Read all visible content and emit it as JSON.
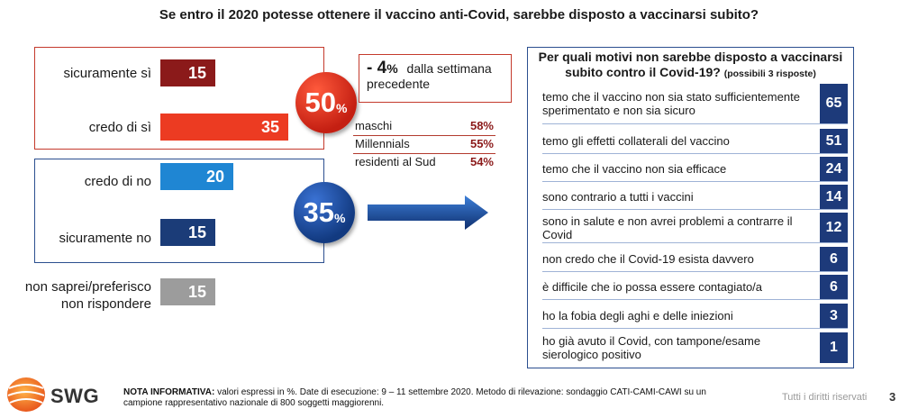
{
  "title": "Se entro il 2020 potesse ottenere il vaccino anti-Covid, sarebbe disposto a vaccinarsi subito?",
  "chart_data": [
    {
      "type": "bar",
      "orientation": "horizontal",
      "categories": [
        "sicuramente sì",
        "credo di sì",
        "credo di no",
        "sicuramente no",
        "non saprei/preferisco non rispondere"
      ],
      "values": [
        15,
        35,
        20,
        15,
        15
      ],
      "colors": [
        "#8b1a1a",
        "#ec3b22",
        "#1f86d3",
        "#1b3c78",
        "#9c9c9c"
      ],
      "xlim": [
        0,
        35
      ],
      "unit": "%"
    },
    {
      "type": "bar",
      "orientation": "horizontal",
      "title": "Per quali motivi non sarebbe disposto a vaccinarsi subito contro il Covid-19?",
      "subtitle": "(possibili 3 risposte)",
      "categories": [
        "temo che il vaccino non sia stato sufficientemente sperimentato e non sia sicuro",
        "temo gli effetti collaterali del vaccino",
        "temo che il vaccino non sia efficace",
        "sono contrario a tutti i vaccini",
        "sono in salute e non avrei problemi a contrarre il Covid",
        "non credo che il Covid-19 esista davvero",
        "è difficile che io possa essere contagiato/a",
        "ho la fobia degli aghi e delle iniezioni",
        "ho già avuto il Covid, con tampone/esame sierologico positivo"
      ],
      "values": [
        65,
        51,
        24,
        14,
        12,
        6,
        6,
        3,
        1
      ]
    }
  ],
  "labels": {
    "cat1": "sicuramente sì",
    "cat2": "credo di sì",
    "cat3": "credo di no",
    "cat4": "sicuramente no",
    "cat5_line1": "non saprei/preferisco",
    "cat5_line2": "non rispondere"
  },
  "yes_total": {
    "value": "50",
    "unit": "%"
  },
  "no_total": {
    "value": "35",
    "unit": "%"
  },
  "callout": {
    "delta": "- 4",
    "delta_unit": "%",
    "text1": "dalla settimana",
    "text2": "precedente"
  },
  "stats": [
    {
      "label": "maschi",
      "value": "58%"
    },
    {
      "label": "Millennials",
      "value": "55%"
    },
    {
      "label": "residenti al Sud",
      "value": "54%"
    }
  ],
  "reasons_panel": {
    "title_line1": "Per quali motivi non sarebbe disposto a vaccinarsi",
    "title_line2": "subito contro il Covid-19?",
    "subtitle": "(possibili 3 risposte)",
    "rows": [
      {
        "text": "temo che il vaccino non sia stato sufficientemente sperimentato e non sia sicuro",
        "value": "65"
      },
      {
        "text": "temo gli effetti collaterali del vaccino",
        "value": "51"
      },
      {
        "text": "temo che il vaccino non sia efficace",
        "value": "24"
      },
      {
        "text": "sono contrario a tutti i vaccini",
        "value": "14"
      },
      {
        "text": "sono in salute e non avrei problemi a contrarre il Covid",
        "value": "12"
      },
      {
        "text": "non credo che il Covid-19 esista davvero",
        "value": "6"
      },
      {
        "text": "è difficile che io possa essere contagiato/a",
        "value": "6"
      },
      {
        "text": "ho la fobia degli aghi e delle iniezioni",
        "value": "3"
      },
      {
        "text": "ho già avuto il Covid, con tampone/esame sierologico positivo",
        "value": "1"
      }
    ]
  },
  "footer": {
    "logo": "SWG",
    "note_label": "NOTA INFORMATIVA:",
    "note_text": "valori espressi in %. Date di esecuzione: 9 – 11 settembre 2020. Metodo di rilevazione: sondaggio CATI-CAMI-CAWI su un campione rappresentativo nazionale di 800 soggetti maggiorenni.",
    "rights": "Tutti i diritti riservati",
    "page": "3"
  }
}
